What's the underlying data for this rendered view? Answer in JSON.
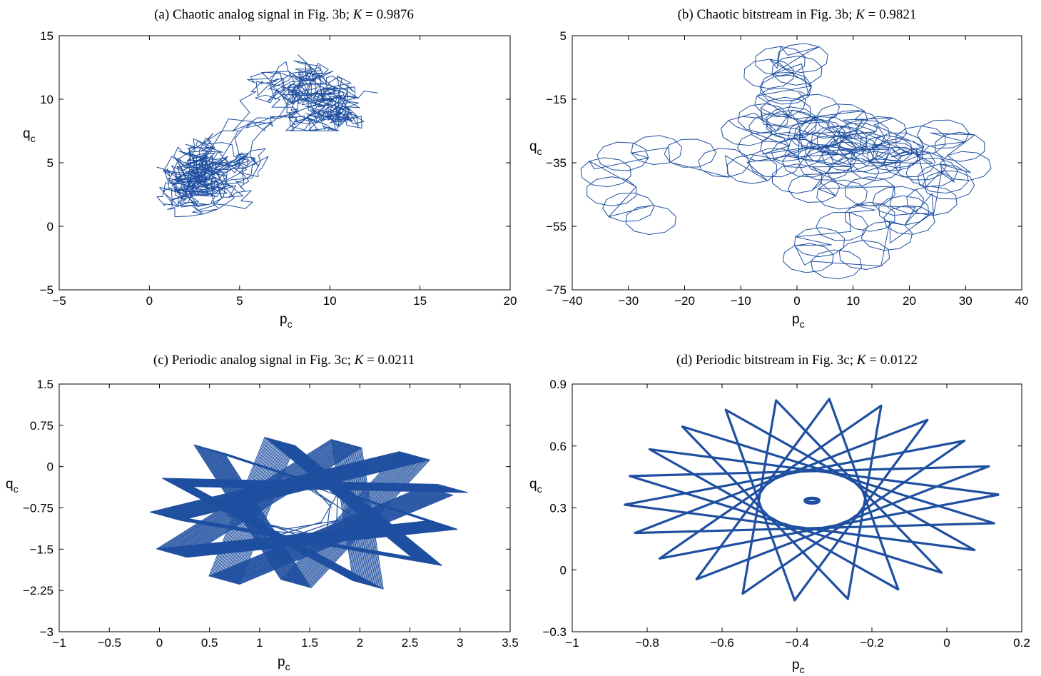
{
  "figure": {
    "x_label_main": "p",
    "x_label_sub": "c",
    "y_label_main": "q",
    "y_label_sub": "c"
  },
  "chart_data": [
    {
      "type": "line",
      "panel": "a",
      "title_prefix": "(a) Chaotic analog signal in Fig. 3b; ",
      "title_k_symbol": "K",
      "title_k_value": " = 0.9876",
      "xlim": [
        -5,
        20
      ],
      "ylim": [
        -5,
        15
      ],
      "xticks": [
        -5,
        0,
        5,
        10,
        15,
        20
      ],
      "xtick_labels": [
        "−5",
        "0",
        "5",
        "10",
        "15",
        "20"
      ],
      "yticks": [
        -5,
        0,
        5,
        10,
        15
      ],
      "ytick_labels": [
        "−5",
        "0",
        "5",
        "10",
        "15"
      ],
      "grid": false,
      "color": "#1f4fa0",
      "series": [
        {
          "mode": "random-walk",
          "points": 900,
          "seed": 11,
          "clusters": [
            {
              "center": [
                3.8,
                4.2
              ],
              "spread": [
                2.6,
                3.4
              ],
              "weight": 0.62
            },
            {
              "center": [
                9.5,
                10.5
              ],
              "spread": [
                4.2,
                2.3
              ],
              "weight": 0.38
            }
          ],
          "step": 0.9
        }
      ]
    },
    {
      "type": "line",
      "panel": "b",
      "title_prefix": "(b) Chaotic bitstream in Fig. 3b; ",
      "title_k_symbol": "K",
      "title_k_value": " = 0.9821",
      "xlim": [
        -40,
        40
      ],
      "ylim": [
        -75,
        5
      ],
      "xticks": [
        -40,
        -30,
        -20,
        -10,
        0,
        10,
        20,
        30,
        40
      ],
      "xtick_labels": [
        "−40",
        "−30",
        "−20",
        "−10",
        "0",
        "10",
        "20",
        "30",
        "40"
      ],
      "yticks": [
        -75,
        -55,
        -35,
        -15,
        5
      ],
      "ytick_labels": [
        "−75",
        "−55",
        "−35",
        "−15",
        "5"
      ],
      "grid": false,
      "color": "#1f4fa0",
      "series": [
        {
          "mode": "epicycle-walk",
          "seed": 7,
          "loop_radius": 4.6,
          "loops": [
            [
              -26,
              -53
            ],
            [
              -30,
              -49
            ],
            [
              -33,
              -44
            ],
            [
              -34,
              -38
            ],
            [
              -31,
              -33
            ],
            [
              -25,
              -31
            ],
            [
              -19,
              -32
            ],
            [
              -13,
              -35
            ],
            [
              -8,
              -37
            ],
            [
              -4,
              -35
            ],
            [
              -2,
              -30
            ],
            [
              -4,
              -24
            ],
            [
              -2,
              -19
            ],
            [
              3,
              -18
            ],
            [
              8,
              -21
            ],
            [
              12,
              -26
            ],
            [
              10,
              -31
            ],
            [
              6,
              -34
            ],
            [
              3,
              -30
            ],
            [
              5,
              -25
            ],
            [
              10,
              -23
            ],
            [
              15,
              -25
            ],
            [
              18,
              -30
            ],
            [
              14,
              -34
            ],
            [
              9,
              -33
            ],
            [
              7,
              -28
            ],
            [
              11,
              -27
            ],
            [
              16,
              -31
            ],
            [
              20,
              -35
            ],
            [
              24,
              -38
            ],
            [
              27,
              -42
            ],
            [
              24,
              -47
            ],
            [
              19,
              -50
            ],
            [
              13,
              -52
            ],
            [
              8,
              -55
            ],
            [
              4,
              -60
            ],
            [
              2,
              -65
            ],
            [
              7,
              -67
            ],
            [
              12,
              -64
            ],
            [
              16,
              -58
            ],
            [
              20,
              -53
            ],
            [
              18,
              -47
            ],
            [
              13,
              -44
            ],
            [
              8,
              -45
            ],
            [
              3,
              -43
            ],
            [
              0,
              -40
            ],
            [
              2,
              -35
            ],
            [
              6,
              -31
            ],
            [
              4,
              -26
            ],
            [
              -1,
              -23
            ],
            [
              -6,
              -21
            ],
            [
              -9,
              -25
            ],
            [
              -6,
              -30
            ],
            [
              0,
              -32
            ],
            [
              5,
              -36
            ],
            [
              10,
              -38
            ],
            [
              14,
              -36
            ],
            [
              18,
              -32
            ],
            [
              22,
              -28
            ],
            [
              26,
              -26
            ],
            [
              29,
              -30
            ],
            [
              30,
              -36
            ],
            [
              26,
              -40
            ],
            [
              22,
              -36
            ],
            [
              17,
              -33
            ],
            [
              12,
              -30
            ],
            [
              8,
              -28
            ],
            [
              3,
              -26
            ],
            [
              -1,
              -22
            ],
            [
              -3,
              -16
            ],
            [
              -2,
              -11
            ],
            [
              -5,
              -7
            ],
            [
              -3,
              -3
            ],
            [
              1,
              -2
            ],
            [
              0,
              -6
            ],
            [
              -2,
              -12
            ]
          ],
          "end": [
            -26,
            -53
          ]
        }
      ]
    },
    {
      "type": "line",
      "panel": "c",
      "title_prefix": "(c) Periodic analog signal in Fig. 3c; ",
      "title_k_symbol": "K",
      "title_k_value": " = 0.0211",
      "xlim": [
        -1,
        3.5
      ],
      "ylim": [
        -3,
        1.5
      ],
      "xticks": [
        -1,
        -0.5,
        0,
        0.5,
        1,
        1.5,
        2,
        2.5,
        3,
        3.5
      ],
      "xtick_labels": [
        "−1",
        "−0.5",
        "0",
        "0.5",
        "1",
        "1.5",
        "2",
        "2.5",
        "3",
        "3.5"
      ],
      "yticks": [
        -3,
        -2.25,
        -1.5,
        -0.75,
        0,
        0.75,
        1.5
      ],
      "ytick_labels": [
        "−3",
        "−2.25",
        "−1.5",
        "−0.75",
        "0",
        "0.75",
        "1.5"
      ],
      "grid": false,
      "color": "#1f4fa0",
      "series": [
        {
          "mode": "banded-rosette",
          "center": [
            1.3,
            -0.75
          ],
          "radius_x": 1.55,
          "radius_y": 1.45,
          "inner": 0.45,
          "spikes": 13,
          "skip": 5,
          "band_copies": 26,
          "band_offset": [
            0.012,
            -0.006
          ]
        }
      ]
    },
    {
      "type": "line",
      "panel": "d",
      "title_prefix": "(d) Periodic bitstream in Fig. 3c; ",
      "title_k_symbol": "K",
      "title_k_value": " = 0.0122",
      "xlim": [
        -1,
        0.2
      ],
      "ylim": [
        -0.3,
        0.9
      ],
      "xticks": [
        -1,
        -0.8,
        -0.6,
        -0.4,
        -0.2,
        0,
        0.2
      ],
      "xtick_labels": [
        "−1",
        "−0.8",
        "−0.6",
        "−0.4",
        "−0.2",
        "0",
        "0.2"
      ],
      "yticks": [
        -0.3,
        0,
        0.3,
        0.6,
        0.9
      ],
      "ytick_labels": [
        "−0.3",
        "0",
        "0.3",
        "0.6",
        "0.9"
      ],
      "grid": false,
      "color": "#1f4fa0",
      "series": [
        {
          "mode": "star",
          "center": [
            -0.36,
            0.34
          ],
          "radius_x": 0.5,
          "radius_y": 0.49,
          "spikes": 22,
          "skip": 9,
          "core_radius": 0.018,
          "stroke": 3.2
        }
      ]
    }
  ]
}
